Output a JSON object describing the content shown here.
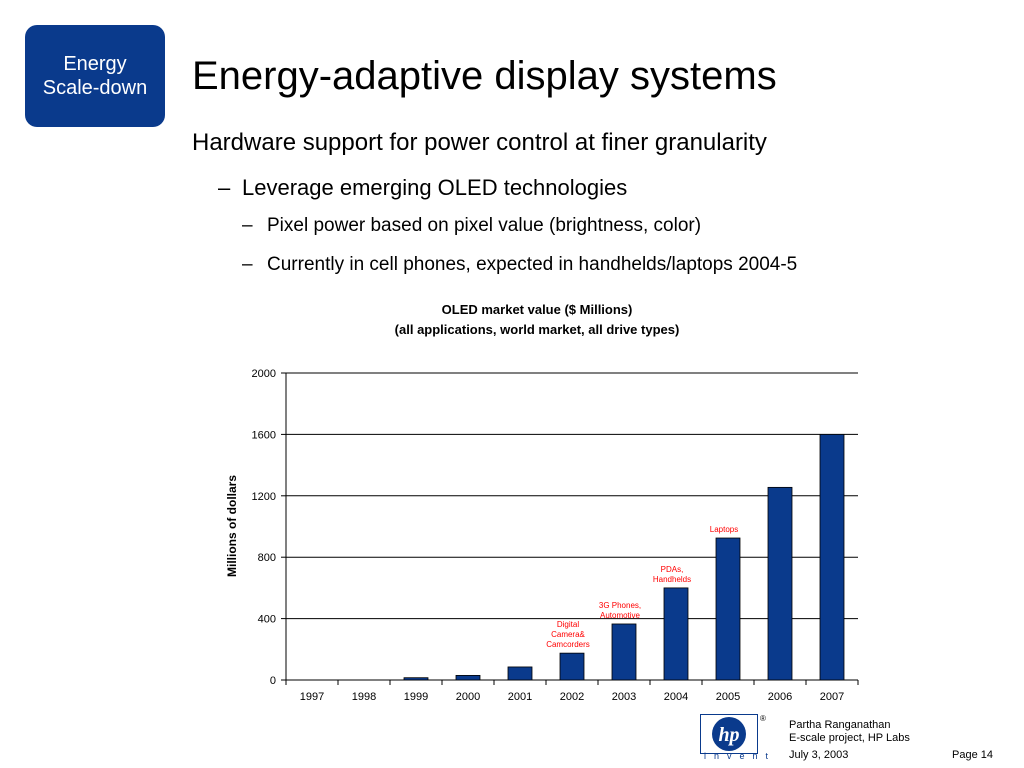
{
  "badge": {
    "line1": "Energy",
    "line2": "Scale-down",
    "color": "#0a3a8c"
  },
  "title": "Energy-adaptive display systems",
  "bullets": {
    "level1": "Hardware support for power control at finer granularity",
    "level2": "Leverage emerging OLED technologies",
    "level3a": "Pixel power based on pixel value (brightness, color)",
    "level3b": "Currently in cell phones, expected in handhelds/laptops 2004-5",
    "dash": "–"
  },
  "chart_data": {
    "type": "bar",
    "title": "OLED market value ($ Millions)",
    "subtitle": "(all applications, world market, all drive types)",
    "ylabel": "Millions of dollars",
    "xlabel": "",
    "categories": [
      "1997",
      "1998",
      "1999",
      "2000",
      "2001",
      "2002",
      "2003",
      "2004",
      "2005",
      "2006",
      "2007"
    ],
    "values": [
      0,
      0,
      15,
      30,
      85,
      175,
      365,
      600,
      925,
      1255,
      1600
    ],
    "ylim": [
      0,
      2000
    ],
    "yticks": [
      0,
      400,
      800,
      1200,
      1600,
      2000
    ],
    "grid": true,
    "bar_color": "#0a3a8c",
    "annotation_color": "#ff0000",
    "annotations": [
      {
        "category": "2002",
        "lines": [
          "Digital",
          "Camera&",
          "Camcorders"
        ]
      },
      {
        "category": "2003",
        "lines": [
          "3G Phones,",
          "Automotive"
        ]
      },
      {
        "category": "2004",
        "lines": [
          "PDAs,",
          "Handhelds"
        ]
      },
      {
        "category": "2005",
        "lines": [
          "Laptops"
        ]
      }
    ]
  },
  "footer": {
    "author": "Partha Ranganathan",
    "project": "E-scale project, HP Labs",
    "date": "July 3, 2003",
    "page": "Page 14",
    "logo_text": "hp",
    "invent": "invent",
    "registered": "®"
  }
}
